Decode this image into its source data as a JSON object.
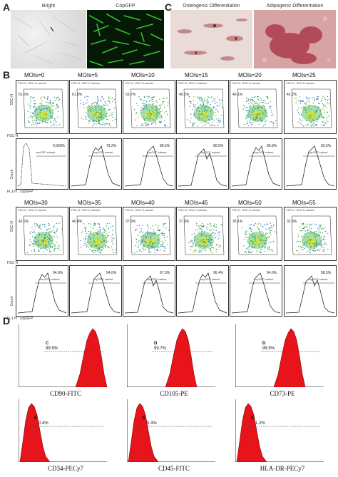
{
  "panels": {
    "A": "A",
    "B": "B",
    "C": "C",
    "D": "D"
  },
  "panelA": {
    "images": [
      {
        "label": "Bright"
      },
      {
        "label": "CopGFP"
      }
    ]
  },
  "panelC": {
    "images": [
      {
        "label": "Osteogenic Differentiation"
      },
      {
        "label": "Adipogenic Differentiation"
      }
    ]
  },
  "panelB": {
    "scatter_y_axis": "SSC-H",
    "scatter_x_axis": "FSC-H",
    "hist_y_axis": "Count",
    "hist_x_axis": "FL1-H : copGFP",
    "gate_text": "FSC-H, SSC-H subset",
    "hist_gate_text": "copGFP subset",
    "row1": [
      {
        "moi": "MOIs=0",
        "scatter_pct": "61.6%",
        "hist_pct": "0.050%"
      },
      {
        "moi": "MOIs=5",
        "scatter_pct": "61.5%",
        "hist_pct": "79.2%"
      },
      {
        "moi": "MOIs=10",
        "scatter_pct": "53.7%",
        "hist_pct": "89.5%"
      },
      {
        "moi": "MOIs=15",
        "scatter_pct": "49.1%",
        "hist_pct": "90.5%"
      },
      {
        "moi": "MOIs=20",
        "scatter_pct": "46.1%",
        "hist_pct": "89.8%"
      },
      {
        "moi": "MOIs=25",
        "scatter_pct": "42.2%",
        "hist_pct": "92.5%"
      }
    ],
    "row2": [
      {
        "moi": "MOIs=30",
        "scatter_pct": "42.5%",
        "hist_pct": "94.9%"
      },
      {
        "moi": "MOIs=35",
        "scatter_pct": "40.9%",
        "hist_pct": "94.0%"
      },
      {
        "moi": "MOIs=40",
        "scatter_pct": "37.9%",
        "hist_pct": "97.3%"
      },
      {
        "moi": "MOIs=45",
        "scatter_pct": "37.0%",
        "hist_pct": "96.4%"
      },
      {
        "moi": "MOIs=50",
        "scatter_pct": "35.1%",
        "hist_pct": "94.0%"
      },
      {
        "moi": "MOIs=55",
        "scatter_pct": "32.3%",
        "hist_pct": "98.5%"
      }
    ]
  },
  "panelD": {
    "histograms": [
      {
        "gate": "C",
        "pct": "99.9%",
        "marker": "CD90-FITC",
        "positive": true
      },
      {
        "gate": "D",
        "pct": "99.7%",
        "marker": "CD105-PE",
        "positive": true
      },
      {
        "gate": "D",
        "pct": "99.9%",
        "marker": "CD73-PE",
        "positive": true
      },
      {
        "gate": "E",
        "pct": "0.4%",
        "marker": "CD34-PECy7",
        "positive": false
      },
      {
        "gate": "E",
        "pct": "0.4%",
        "marker": "CD45-FITC",
        "positive": false
      },
      {
        "gate": "E",
        "pct": "1.2%",
        "marker": "HLA-DR-PECy7",
        "positive": false
      }
    ],
    "fill_color": "#e8141b"
  }
}
